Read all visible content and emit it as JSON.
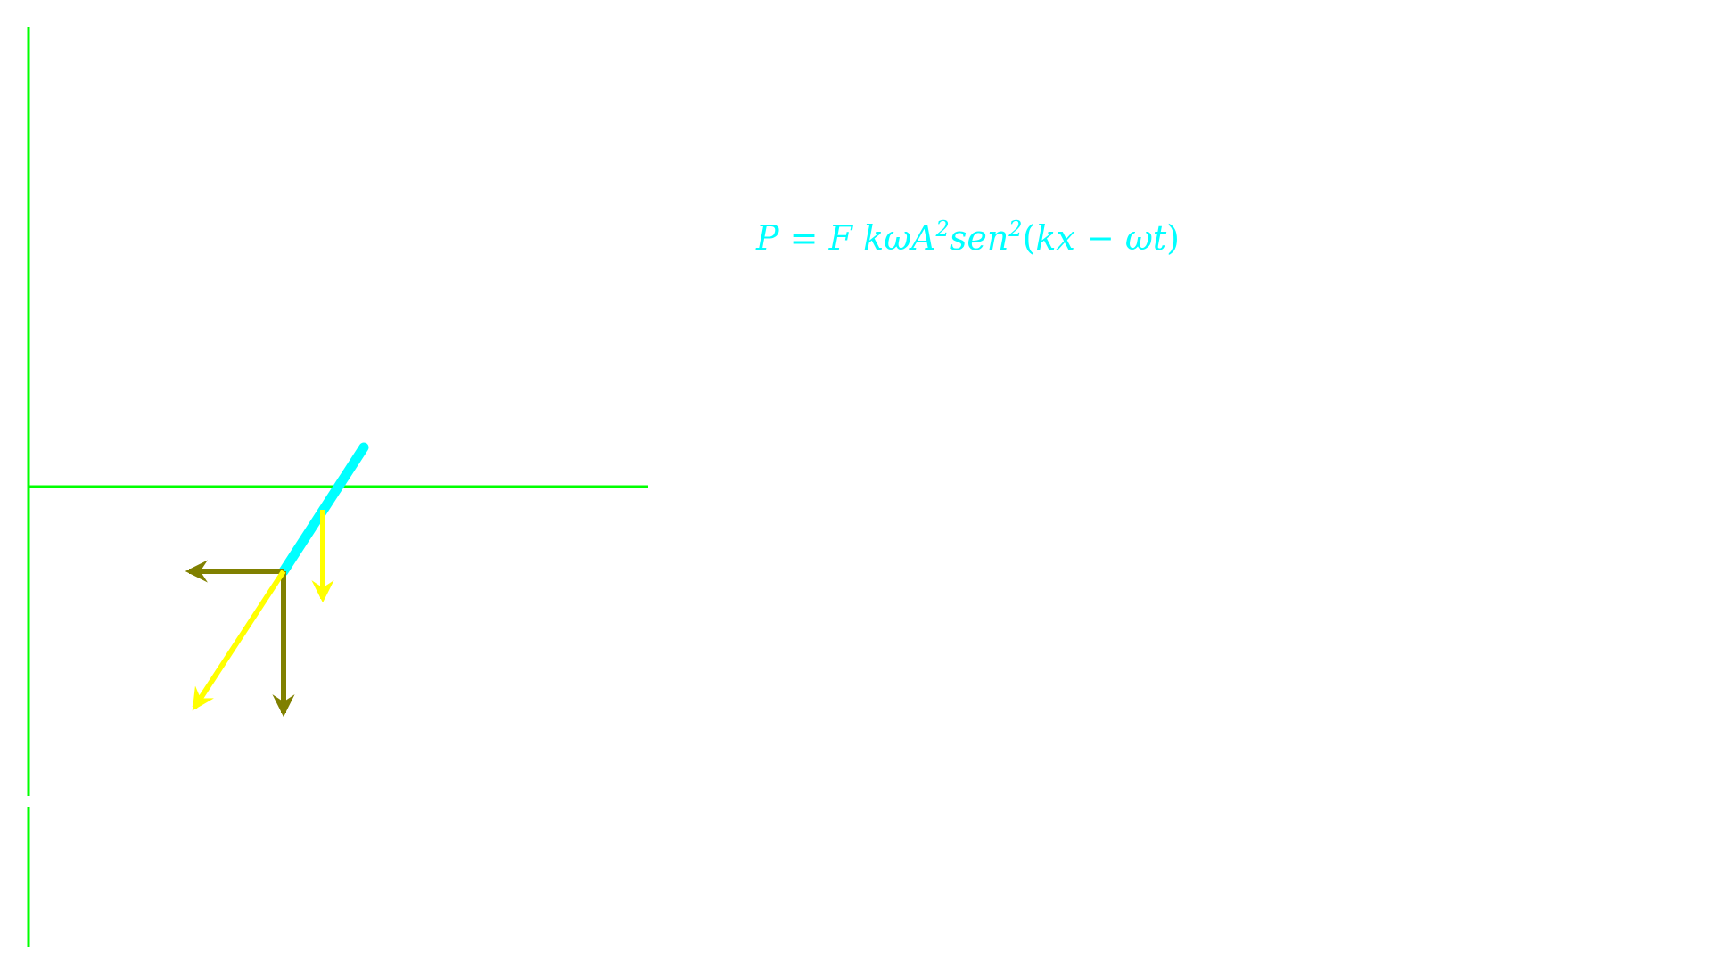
{
  "colors": {
    "axis": "#00ff00",
    "rod": "#00ffff",
    "yellow_arrow": "#ffff00",
    "olive_arrow": "#808000",
    "formula": "#00ffff",
    "background": "#ffffff"
  },
  "formula": {
    "lhs": "P",
    "equals": "=",
    "term_F": "F",
    "term_kwA": "kωA",
    "exp_A": "2",
    "term_sen": "sen",
    "exp_sen": "2",
    "open_paren": "(",
    "term_kx": "kx",
    "minus": "−",
    "term_wt": "ωt",
    "close_paren": ")"
  }
}
